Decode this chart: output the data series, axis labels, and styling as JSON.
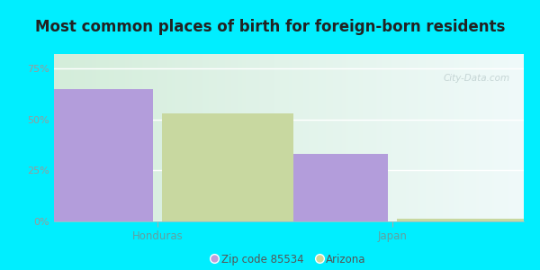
{
  "title": "Most common places of birth for foreign-born residents",
  "categories": [
    "Honduras",
    "Japan"
  ],
  "series": [
    {
      "label": "Zip code 85534",
      "values": [
        65.0,
        33.0
      ],
      "color": "#b39ddb"
    },
    {
      "label": "Arizona",
      "values": [
        53.0,
        1.5
      ],
      "color": "#c8d8a0"
    }
  ],
  "yticks": [
    0,
    25,
    50,
    75
  ],
  "ytick_labels": [
    "0%",
    "25%",
    "50%",
    "75%"
  ],
  "ylim": [
    0,
    82
  ],
  "background_outer": "#00eeff",
  "title_fontsize": 12,
  "axis_label_color": "#60a0a0",
  "watermark": "City-Data.com",
  "bar_width": 0.28,
  "legend_marker_colors": [
    "#c09ddb",
    "#d0d898"
  ]
}
